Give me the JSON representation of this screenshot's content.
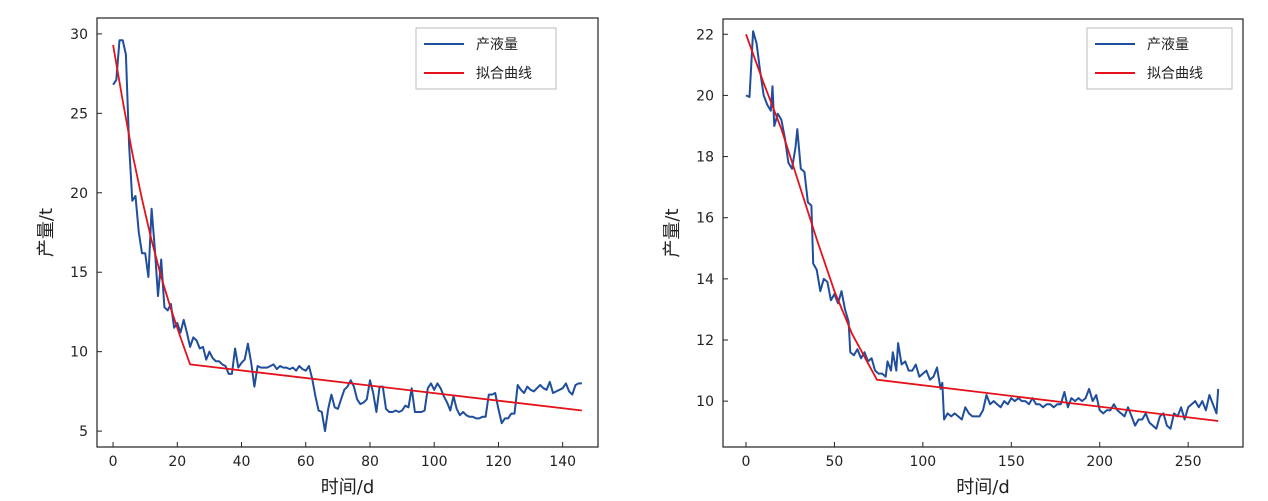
{
  "chart_data": [
    {
      "type": "line",
      "xlabel": "时间/d",
      "ylabel": "产量/t",
      "xlim": [
        -5,
        151
      ],
      "ylim": [
        4,
        31
      ],
      "xticks": [
        0,
        20,
        40,
        60,
        80,
        100,
        120,
        140
      ],
      "yticks": [
        5,
        10,
        15,
        20,
        25,
        30
      ],
      "grid": false,
      "legend_position": "top-right",
      "series": [
        {
          "name": "产液量",
          "color": "#1f4e9c",
          "x": [
            0,
            1,
            2,
            3,
            4,
            5,
            6,
            7,
            8,
            9,
            10,
            11,
            12,
            13,
            14,
            15,
            16,
            17,
            18,
            19,
            20,
            21,
            22,
            23,
            24,
            25,
            26,
            27,
            28,
            29,
            30,
            31,
            32,
            33,
            34,
            35,
            36,
            37,
            38,
            39,
            40,
            41,
            42,
            43,
            44,
            45,
            46,
            47,
            48,
            49,
            50,
            51,
            52,
            53,
            54,
            55,
            56,
            57,
            58,
            59,
            60,
            61,
            62,
            63,
            64,
            65,
            66,
            67,
            68,
            69,
            70,
            71,
            72,
            73,
            74,
            75,
            76,
            77,
            78,
            79,
            80,
            81,
            82,
            83,
            84,
            85,
            86,
            87,
            88,
            89,
            90,
            91,
            92,
            93,
            94,
            95,
            96,
            97,
            98,
            99,
            100,
            101,
            102,
            103,
            104,
            105,
            106,
            107,
            108,
            109,
            110,
            111,
            112,
            113,
            114,
            115,
            116,
            117,
            118,
            119,
            120,
            121,
            122,
            123,
            124,
            125,
            126,
            127,
            128,
            129,
            130,
            131,
            132,
            133,
            134,
            135,
            136,
            137,
            138,
            139,
            140,
            141,
            142,
            143,
            144,
            145,
            146
          ],
          "y": [
            26.8,
            27.1,
            29.6,
            29.6,
            28.7,
            23.0,
            19.5,
            19.8,
            17.5,
            16.2,
            16.2,
            14.7,
            19.0,
            16.5,
            13.5,
            15.8,
            12.8,
            12.6,
            13.0,
            11.5,
            11.8,
            11.2,
            12.0,
            11.2,
            10.3,
            10.9,
            10.7,
            10.2,
            10.3,
            9.5,
            10.0,
            9.6,
            9.4,
            9.4,
            9.2,
            9.1,
            8.6,
            8.6,
            10.2,
            9.0,
            9.3,
            9.5,
            10.5,
            9.3,
            7.8,
            9.1,
            9.0,
            9.0,
            9.0,
            9.1,
            9.2,
            8.9,
            9.1,
            9.0,
            9.0,
            8.9,
            9.0,
            8.8,
            9.1,
            8.9,
            8.8,
            9.1,
            8.3,
            7.2,
            6.3,
            6.2,
            5.0,
            6.4,
            7.3,
            6.5,
            6.4,
            7.0,
            7.6,
            7.8,
            8.2,
            7.8,
            7.0,
            6.7,
            6.8,
            7.0,
            8.2,
            7.4,
            6.2,
            7.8,
            7.8,
            6.4,
            6.2,
            6.2,
            6.3,
            6.2,
            6.3,
            6.6,
            6.5,
            7.7,
            6.2,
            6.2,
            6.2,
            6.3,
            7.7,
            8.0,
            7.6,
            8.0,
            7.7,
            7.2,
            6.8,
            6.3,
            7.2,
            6.4,
            6.0,
            6.2,
            6.0,
            5.9,
            5.9,
            5.8,
            5.8,
            5.9,
            5.9,
            7.3,
            7.3,
            7.4,
            6.4,
            5.5,
            5.8,
            5.8,
            6.1,
            6.1,
            7.9,
            7.6,
            7.4,
            7.8,
            7.6,
            7.5,
            7.7,
            7.9,
            7.7,
            7.6,
            8.1,
            7.4,
            7.5,
            7.6,
            7.7,
            8.0,
            7.5,
            7.3,
            7.9,
            8.0,
            8.0
          ]
        },
        {
          "name": "拟合曲线",
          "color": "#e3121b",
          "x": [
            0,
            3,
            6,
            9,
            12,
            15,
            18,
            21,
            24,
            146
          ],
          "y": [
            29.3,
            25.8,
            22.5,
            19.6,
            17.0,
            14.7,
            12.7,
            10.9,
            9.2,
            6.3
          ]
        }
      ]
    },
    {
      "type": "line",
      "xlabel": "时间/d",
      "ylabel": "产量/t",
      "xlim": [
        -13,
        281
      ],
      "ylim": [
        8.5,
        22.5
      ],
      "xticks": [
        0,
        50,
        100,
        150,
        200,
        250
      ],
      "yticks": [
        10,
        12,
        14,
        16,
        18,
        20,
        22
      ],
      "grid": false,
      "legend_position": "top-right",
      "series": [
        {
          "name": "产液量",
          "color": "#1f4e9c",
          "x": [
            0,
            2,
            4,
            6,
            8,
            10,
            12,
            14,
            15,
            16,
            18,
            20,
            22,
            24,
            26,
            28,
            29,
            31,
            33,
            35,
            37,
            38,
            40,
            42,
            44,
            46,
            48,
            50,
            52,
            54,
            56,
            58,
            59,
            61,
            63,
            65,
            67,
            69,
            71,
            73,
            75,
            77,
            79,
            80,
            82,
            83,
            85,
            86,
            88,
            90,
            92,
            94,
            96,
            98,
            100,
            102,
            104,
            106,
            108,
            110,
            111,
            112,
            114,
            116,
            118,
            120,
            122,
            124,
            126,
            128,
            130,
            132,
            134,
            136,
            138,
            140,
            142,
            144,
            146,
            148,
            150,
            152,
            154,
            156,
            158,
            160,
            162,
            164,
            166,
            168,
            170,
            172,
            174,
            176,
            178,
            180,
            182,
            184,
            186,
            188,
            190,
            192,
            194,
            196,
            198,
            200,
            202,
            204,
            206,
            208,
            210,
            212,
            214,
            216,
            218,
            220,
            222,
            224,
            226,
            228,
            230,
            232,
            234,
            236,
            238,
            240,
            242,
            244,
            246,
            248,
            250,
            252,
            254,
            256,
            258,
            260,
            262,
            264,
            266,
            267
          ],
          "y": [
            20.0,
            19.95,
            22.1,
            21.7,
            20.8,
            20.0,
            19.7,
            19.5,
            20.3,
            19.0,
            19.4,
            19.2,
            18.6,
            17.8,
            17.6,
            18.3,
            18.9,
            17.6,
            17.5,
            16.5,
            16.4,
            14.5,
            14.3,
            13.6,
            14.0,
            13.9,
            13.3,
            13.5,
            13.2,
            13.6,
            13.0,
            12.6,
            11.6,
            11.5,
            11.7,
            11.4,
            11.6,
            11.3,
            11.4,
            11.0,
            10.9,
            10.9,
            10.8,
            11.3,
            11.0,
            11.6,
            11.0,
            11.9,
            11.2,
            11.3,
            11.0,
            11.0,
            11.2,
            10.8,
            10.9,
            11.0,
            10.7,
            10.8,
            11.1,
            10.4,
            10.6,
            9.4,
            9.6,
            9.5,
            9.6,
            9.5,
            9.4,
            9.8,
            9.6,
            9.5,
            9.5,
            9.5,
            9.7,
            10.2,
            9.9,
            10.0,
            9.9,
            9.8,
            10.0,
            9.9,
            10.1,
            10.0,
            10.1,
            10.0,
            10.0,
            9.9,
            10.1,
            9.9,
            9.9,
            9.8,
            9.9,
            9.9,
            9.8,
            9.9,
            9.9,
            10.3,
            9.8,
            10.1,
            10.0,
            10.1,
            10.0,
            10.1,
            10.4,
            10.0,
            10.2,
            9.7,
            9.6,
            9.7,
            9.7,
            9.9,
            9.7,
            9.6,
            9.5,
            9.8,
            9.5,
            9.2,
            9.4,
            9.4,
            9.6,
            9.3,
            9.2,
            9.1,
            9.5,
            9.6,
            9.2,
            9.1,
            9.6,
            9.5,
            9.8,
            9.4,
            9.8,
            9.9,
            10.0,
            9.8,
            10.0,
            9.7,
            10.2,
            9.9,
            9.6,
            10.4
          ]
        },
        {
          "name": "拟合曲线",
          "color": "#e3121b",
          "x": [
            0,
            10,
            20,
            30,
            40,
            50,
            60,
            74,
            267
          ],
          "y": [
            22.0,
            20.4,
            18.9,
            17.1,
            15.3,
            13.6,
            12.2,
            10.7,
            9.35
          ]
        }
      ]
    }
  ]
}
